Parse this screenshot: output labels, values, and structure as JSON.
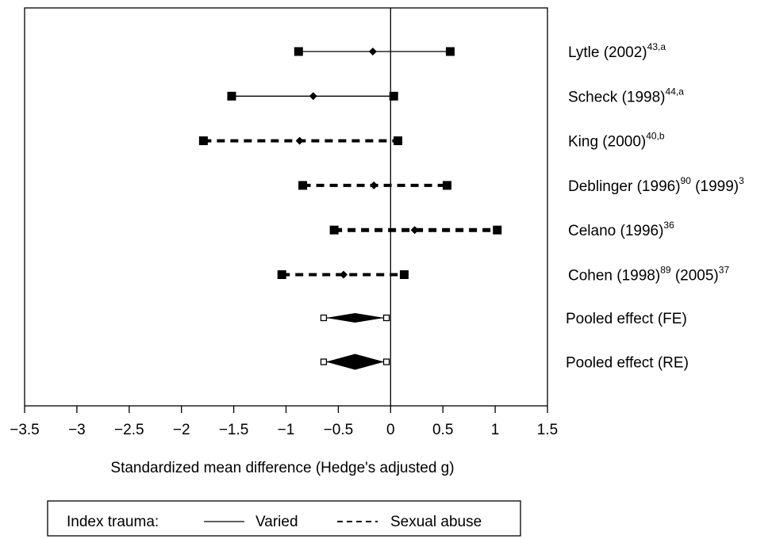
{
  "chart_data": {
    "type": "forest",
    "xlabel": "Standardized mean difference (Hedge's adjusted g)",
    "xlim": [
      -3.5,
      1.5
    ],
    "xticks": [
      -3.5,
      -3,
      -2.5,
      -2,
      -1.5,
      -1,
      -0.5,
      0,
      0.5,
      1,
      1.5
    ],
    "xtick_labels": [
      "−3.5",
      "−3",
      "−2.5",
      "−2",
      "−1.5",
      "−1",
      "−0.5",
      "0",
      "0.5",
      "1",
      "1.5"
    ],
    "reference_line": 0,
    "studies": [
      {
        "label": "Lytle (2002)",
        "sup": "43,a",
        "extra": "",
        "extra_sup": "",
        "trauma": "Varied",
        "estimate": -0.17,
        "lower": -0.88,
        "upper": 0.57,
        "weight": 1
      },
      {
        "label": "Scheck (1998)",
        "sup": "44,a",
        "extra": "",
        "extra_sup": "",
        "trauma": "Varied",
        "estimate": -0.74,
        "lower": -1.52,
        "upper": 0.03,
        "weight": 1
      },
      {
        "label": "King (2000)",
        "sup": "40,b",
        "extra": "",
        "extra_sup": "",
        "trauma": "Sexual abuse",
        "estimate": -0.87,
        "lower": -1.79,
        "upper": 0.07,
        "weight": 2
      },
      {
        "label": "Deblinger (1996)",
        "sup": "90",
        "extra": " (1999)",
        "extra_sup": "3",
        "trauma": "Sexual abuse",
        "estimate": -0.16,
        "lower": -0.84,
        "upper": 0.54,
        "weight": 2
      },
      {
        "label": "Celano (1996)",
        "sup": "36",
        "extra": "",
        "extra_sup": "",
        "trauma": "Sexual abuse",
        "estimate": 0.23,
        "lower": -0.54,
        "upper": 1.02,
        "weight": 3
      },
      {
        "label": "Cohen (1998)",
        "sup": "89",
        "extra": "  (2005)",
        "extra_sup": "37",
        "trauma": "Sexual abuse",
        "estimate": -0.45,
        "lower": -1.04,
        "upper": 0.13,
        "weight": 2
      }
    ],
    "pooled": [
      {
        "label": "Pooled effect (FE)",
        "estimate": -0.34,
        "lower": -0.64,
        "upper": -0.04
      },
      {
        "label": "Pooled effect (RE)",
        "estimate": -0.34,
        "lower": -0.64,
        "upper": -0.04
      }
    ],
    "legend": {
      "title": "Index trauma:",
      "items": [
        {
          "label": "Varied",
          "style": "solid"
        },
        {
          "label": "Sexual abuse",
          "style": "dashed"
        }
      ],
      "placement": "bottom"
    }
  }
}
